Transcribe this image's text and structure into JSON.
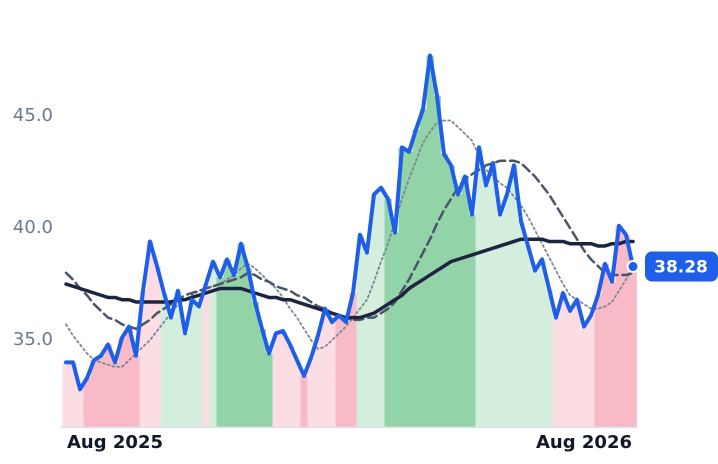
{
  "chart_data": {
    "type": "line",
    "x": [
      0,
      1,
      2,
      3,
      4,
      5,
      6,
      7,
      8,
      9,
      10,
      11,
      12,
      13,
      14,
      15,
      16,
      17,
      18,
      19,
      20,
      21,
      22,
      23,
      24,
      25,
      26,
      27,
      28,
      29,
      30,
      31,
      32,
      33,
      34,
      35,
      36,
      37,
      38,
      39,
      40,
      41,
      42,
      43,
      44,
      45,
      46,
      47,
      48,
      49,
      50,
      51,
      52,
      53,
      54,
      55,
      56,
      57,
      58,
      59,
      60,
      61,
      62,
      63,
      64,
      65,
      66,
      67,
      68,
      69,
      70,
      71,
      72,
      73,
      74,
      75,
      76,
      77,
      78,
      79,
      80,
      81
    ],
    "xlim": [
      0,
      81
    ],
    "xticks": [
      {
        "value": 7,
        "label": "Aug 2025"
      },
      {
        "value": 74,
        "label": "Aug 2026"
      }
    ],
    "ylim": [
      31.1,
      48.5
    ],
    "yticks": [
      {
        "value": 35,
        "label": "35.0"
      },
      {
        "value": 40,
        "label": "40.0"
      },
      {
        "value": 45,
        "label": "45.0"
      }
    ],
    "band_colors": [
      "#fddde4",
      "#f9bac7",
      "#d4eedd",
      "#92d3a8"
    ],
    "regime": [
      0,
      0,
      0,
      1,
      1,
      1,
      1,
      1,
      1,
      1,
      1,
      0,
      0,
      0,
      2,
      2,
      2,
      2,
      2,
      2,
      0,
      2,
      3,
      3,
      3,
      3,
      3,
      3,
      3,
      3,
      0,
      0,
      0,
      0,
      1,
      0,
      0,
      0,
      0,
      1,
      1,
      1,
      2,
      2,
      2,
      2,
      3,
      3,
      3,
      3,
      3,
      3,
      3,
      3,
      3,
      3,
      3,
      3,
      3,
      2,
      2,
      2,
      2,
      2,
      2,
      2,
      2,
      2,
      2,
      2,
      0,
      0,
      0,
      0,
      0,
      0,
      1,
      1,
      1,
      1,
      1,
      1
    ],
    "series": [
      {
        "color": "#1f5ee8",
        "style": "solid",
        "width": 4,
        "values": [
          34.0,
          34.0,
          32.8,
          33.3,
          34.1,
          34.3,
          34.8,
          34.0,
          35.1,
          35.6,
          34.3,
          37.2,
          39.4,
          38.3,
          37.1,
          36.0,
          37.2,
          35.3,
          36.8,
          36.5,
          37.5,
          38.5,
          37.8,
          38.6,
          37.9,
          39.3,
          38.2,
          36.7,
          35.5,
          34.4,
          35.3,
          35.4,
          34.8,
          34.1,
          33.4,
          34.2,
          35.2,
          36.4,
          35.8,
          36.1,
          35.8,
          37.1,
          39.7,
          38.9,
          41.5,
          41.8,
          41.3,
          39.8,
          43.6,
          43.4,
          44.4,
          45.3,
          47.7,
          45.9,
          43.3,
          42.8,
          41.5,
          42.3,
          40.6,
          43.6,
          41.9,
          42.9,
          40.6,
          41.5,
          42.8,
          40.3,
          39.2,
          38.1,
          38.6,
          37.3,
          36.0,
          37.1,
          36.3,
          36.8,
          35.6,
          36.1,
          37.0,
          38.4,
          37.6,
          40.1,
          39.7,
          38.28
        ]
      },
      {
        "color": "#1c2440",
        "style": "solid",
        "width": 3.5,
        "values": [
          37.5,
          37.4,
          37.3,
          37.2,
          37.1,
          37.0,
          36.9,
          36.9,
          36.8,
          36.8,
          36.7,
          36.7,
          36.7,
          36.7,
          36.7,
          36.7,
          36.8,
          36.8,
          36.9,
          37.0,
          37.1,
          37.2,
          37.3,
          37.3,
          37.3,
          37.3,
          37.2,
          37.1,
          37.0,
          36.9,
          36.9,
          36.8,
          36.8,
          36.7,
          36.6,
          36.5,
          36.4,
          36.3,
          36.2,
          36.1,
          36.0,
          36.0,
          36.0,
          36.1,
          36.2,
          36.4,
          36.6,
          36.8,
          37.0,
          37.3,
          37.5,
          37.7,
          37.9,
          38.1,
          38.3,
          38.5,
          38.6,
          38.7,
          38.8,
          38.9,
          39.0,
          39.1,
          39.2,
          39.3,
          39.4,
          39.5,
          39.5,
          39.5,
          39.5,
          39.4,
          39.4,
          39.4,
          39.3,
          39.3,
          39.3,
          39.3,
          39.2,
          39.2,
          39.3,
          39.3,
          39.4,
          39.4
        ]
      },
      {
        "color": "#4a5568",
        "style": "dashed",
        "width": 2.5,
        "values": [
          38.0,
          37.7,
          37.3,
          37.0,
          36.6,
          36.3,
          36.0,
          35.9,
          35.7,
          35.6,
          35.5,
          35.7,
          35.9,
          36.2,
          36.4,
          36.6,
          36.8,
          37.0,
          37.1,
          37.2,
          37.3,
          37.4,
          37.5,
          37.6,
          37.7,
          37.8,
          38.0,
          37.9,
          37.7,
          37.6,
          37.4,
          37.3,
          37.2,
          37.0,
          36.9,
          36.7,
          36.5,
          36.4,
          36.2,
          36.1,
          36.0,
          35.9,
          35.9,
          36.0,
          36.0,
          36.2,
          36.4,
          36.7,
          37.2,
          37.7,
          38.3,
          38.9,
          39.5,
          40.2,
          40.8,
          41.3,
          41.8,
          42.2,
          42.4,
          42.6,
          42.8,
          42.9,
          43.0,
          43.0,
          43.0,
          42.9,
          42.6,
          42.3,
          41.9,
          41.5,
          41.0,
          40.5,
          40.0,
          39.5,
          39.0,
          38.6,
          38.3,
          38.0,
          37.9,
          37.9,
          37.9,
          38.0
        ]
      },
      {
        "color": "#7a8699",
        "style": "dotted",
        "width": 1.8,
        "values": [
          35.7,
          35.2,
          34.8,
          34.4,
          34.1,
          34.0,
          33.9,
          33.8,
          33.8,
          34.1,
          34.4,
          34.7,
          35.0,
          35.4,
          35.8,
          36.2,
          36.6,
          36.8,
          37.0,
          37.2,
          37.3,
          37.4,
          37.5,
          37.7,
          37.9,
          38.2,
          38.4,
          38.2,
          37.9,
          37.6,
          37.3,
          36.9,
          36.4,
          36.0,
          35.5,
          35.0,
          34.6,
          34.7,
          35.0,
          35.3,
          35.6,
          36.0,
          36.4,
          36.8,
          37.6,
          38.5,
          39.3,
          40.3,
          41.3,
          42.2,
          43.0,
          43.8,
          44.3,
          44.7,
          44.8,
          44.8,
          44.5,
          44.2,
          43.9,
          43.2,
          42.6,
          42.3,
          42.0,
          41.8,
          41.4,
          41.0,
          40.5,
          39.9,
          39.3,
          38.7,
          38.1,
          37.5,
          37.0,
          36.8,
          36.6,
          36.4,
          36.4,
          36.5,
          36.7,
          37.2,
          37.7,
          38.2
        ]
      }
    ]
  }
}
